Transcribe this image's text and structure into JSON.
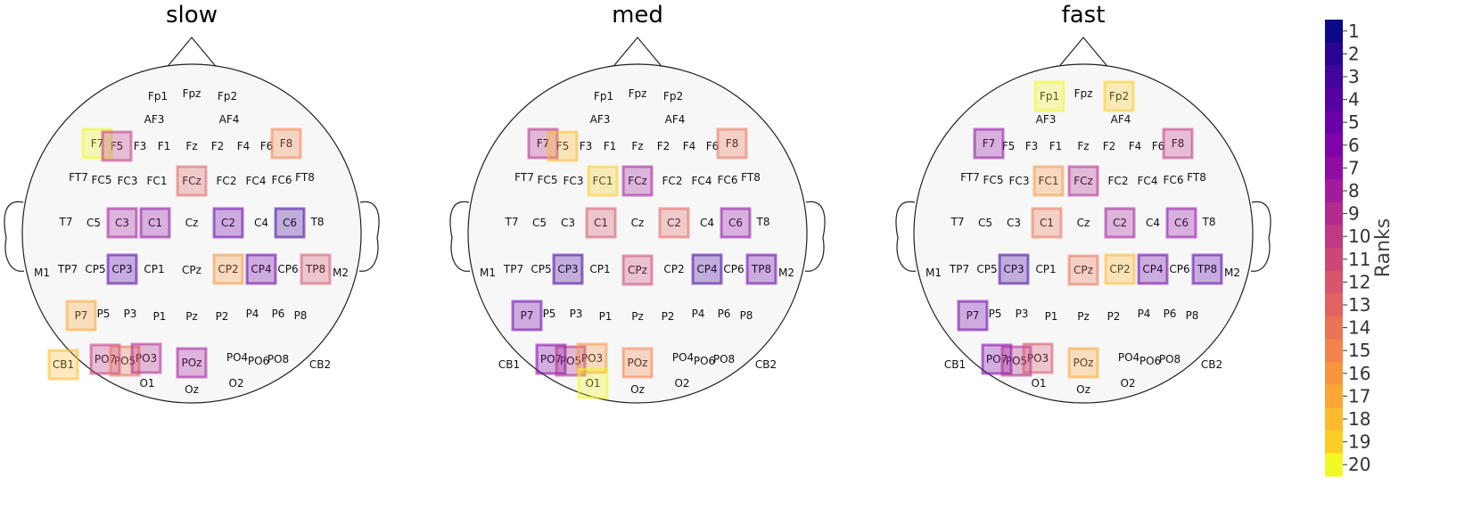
{
  "colors": {
    "head_fill": "#f7f7f7",
    "outline": "#222222",
    "colormap": [
      "#0d0887",
      "#2a0593",
      "#41049d",
      "#5601a4",
      "#6a00a8",
      "#7e03a8",
      "#8f0da4",
      "#a11b9b",
      "#b12a90",
      "#bf3984",
      "#cc4778",
      "#d6556d",
      "#e16462",
      "#ea7457",
      "#f2844b",
      "#f89540",
      "#fca636",
      "#feba2c",
      "#fcce25",
      "#f0f921"
    ]
  },
  "panels": [
    {
      "title": "slow",
      "highlights": [
        {
          "ch": "F7",
          "rank": 20
        },
        {
          "ch": "F5",
          "rank": 10
        },
        {
          "ch": "F8",
          "rank": 15
        },
        {
          "ch": "FCz",
          "rank": 13
        },
        {
          "ch": "C3",
          "rank": 8
        },
        {
          "ch": "C1",
          "rank": 7
        },
        {
          "ch": "C2",
          "rank": 5
        },
        {
          "ch": "C6",
          "rank": 3
        },
        {
          "ch": "CP3",
          "rank": 4
        },
        {
          "ch": "CP2",
          "rank": 16
        },
        {
          "ch": "CP4",
          "rank": 5
        },
        {
          "ch": "TP8",
          "rank": 12
        },
        {
          "ch": "P7",
          "rank": 17
        },
        {
          "ch": "PO7",
          "rank": 10
        },
        {
          "ch": "PO5",
          "rank": 14
        },
        {
          "ch": "PO3",
          "rank": 9
        },
        {
          "ch": "POz",
          "rank": 8
        },
        {
          "ch": "CB1",
          "rank": 18
        }
      ]
    },
    {
      "title": "med",
      "highlights": [
        {
          "ch": "F7",
          "rank": 9
        },
        {
          "ch": "F5",
          "rank": 18
        },
        {
          "ch": "F8",
          "rank": 14
        },
        {
          "ch": "FC1",
          "rank": 19
        },
        {
          "ch": "FCz",
          "rank": 8
        },
        {
          "ch": "C1",
          "rank": 12
        },
        {
          "ch": "C2",
          "rank": 13
        },
        {
          "ch": "C6",
          "rank": 7
        },
        {
          "ch": "CP3",
          "rank": 3
        },
        {
          "ch": "CPz",
          "rank": 11
        },
        {
          "ch": "CP4",
          "rank": 3
        },
        {
          "ch": "TP8",
          "rank": 5
        },
        {
          "ch": "P7",
          "rank": 5
        },
        {
          "ch": "PO7",
          "rank": 6
        },
        {
          "ch": "PO5",
          "rank": 9
        },
        {
          "ch": "PO3",
          "rank": 16
        },
        {
          "ch": "POz",
          "rank": 15
        },
        {
          "ch": "O1",
          "rank": 20
        }
      ]
    },
    {
      "title": "fast",
      "highlights": [
        {
          "ch": "Fp1",
          "rank": 20
        },
        {
          "ch": "Fp2",
          "rank": 19
        },
        {
          "ch": "F7",
          "rank": 7
        },
        {
          "ch": "F8",
          "rank": 10
        },
        {
          "ch": "FC1",
          "rank": 16
        },
        {
          "ch": "FCz",
          "rank": 9
        },
        {
          "ch": "C1",
          "rank": 14
        },
        {
          "ch": "C2",
          "rank": 8
        },
        {
          "ch": "C6",
          "rank": 7
        },
        {
          "ch": "CP3",
          "rank": 3
        },
        {
          "ch": "CPz",
          "rank": 14
        },
        {
          "ch": "CP2",
          "rank": 18
        },
        {
          "ch": "CP4",
          "rank": 5
        },
        {
          "ch": "TP8",
          "rank": 4
        },
        {
          "ch": "P7",
          "rank": 5
        },
        {
          "ch": "PO7",
          "rank": 6
        },
        {
          "ch": "PO5",
          "rank": 9
        },
        {
          "ch": "PO3",
          "rank": 12
        },
        {
          "ch": "POz",
          "rank": 17
        }
      ]
    }
  ],
  "colorbar": {
    "label": "Ranks",
    "ticks": [
      "1",
      "2",
      "3",
      "4",
      "5",
      "6",
      "7",
      "8",
      "9",
      "10",
      "11",
      "12",
      "13",
      "14",
      "15",
      "16",
      "17",
      "18",
      "19",
      "20"
    ]
  }
}
